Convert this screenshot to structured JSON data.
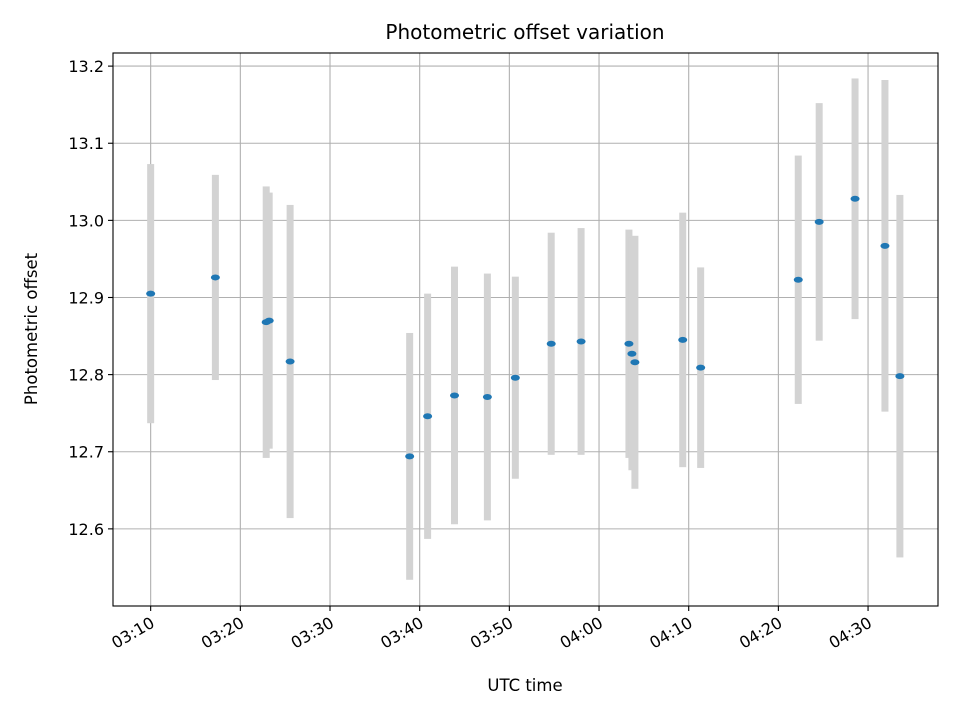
{
  "chart_data": {
    "type": "scatter",
    "title": "Photometric offset variation",
    "xlabel": "UTC time",
    "ylabel": "Photometric offset",
    "x_ticks": [
      "03:10",
      "03:20",
      "03:30",
      "03:40",
      "03:50",
      "04:00",
      "04:10",
      "04:20",
      "04:30"
    ],
    "y_ticks": [
      "12.6",
      "12.7",
      "12.8",
      "12.9",
      "13.0",
      "13.1",
      "13.2"
    ],
    "xlim": [
      "03:05:48",
      "04:37:48"
    ],
    "ylim": [
      12.5,
      13.217
    ],
    "grid": true,
    "colors": {
      "point": "#1f77b4",
      "errorbar": "#d3d3d3",
      "grid": "#b0b0b0"
    },
    "series": [
      {
        "points": [
          {
            "t": "03:10:00",
            "y": 12.905,
            "err": 0.168
          },
          {
            "t": "03:17:13",
            "y": 12.926,
            "err": 0.133
          },
          {
            "t": "03:22:53",
            "y": 12.868,
            "err": 0.176
          },
          {
            "t": "03:23:13",
            "y": 12.87,
            "err": 0.166
          },
          {
            "t": "03:25:33",
            "y": 12.817,
            "err": 0.203
          },
          {
            "t": "03:38:53",
            "y": 12.694,
            "err": 0.16
          },
          {
            "t": "03:40:53",
            "y": 12.746,
            "err": 0.159
          },
          {
            "t": "03:43:53",
            "y": 12.773,
            "err": 0.167
          },
          {
            "t": "03:47:33",
            "y": 12.771,
            "err": 0.16
          },
          {
            "t": "03:50:40",
            "y": 12.796,
            "err": 0.131
          },
          {
            "t": "03:54:40",
            "y": 12.84,
            "err": 0.144
          },
          {
            "t": "03:58:00",
            "y": 12.843,
            "err": 0.147
          },
          {
            "t": "04:03:20",
            "y": 12.84,
            "err": 0.148
          },
          {
            "t": "04:03:40",
            "y": 12.827,
            "err": 0.151
          },
          {
            "t": "04:04:00",
            "y": 12.816,
            "err": 0.164
          },
          {
            "t": "04:09:20",
            "y": 12.845,
            "err": 0.165
          },
          {
            "t": "04:11:20",
            "y": 12.809,
            "err": 0.13
          },
          {
            "t": "04:22:13",
            "y": 12.923,
            "err": 0.161
          },
          {
            "t": "04:24:33",
            "y": 12.998,
            "err": 0.154
          },
          {
            "t": "04:28:33",
            "y": 13.028,
            "err": 0.156
          },
          {
            "t": "04:31:53",
            "y": 12.967,
            "err": 0.215
          },
          {
            "t": "04:33:33",
            "y": 12.798,
            "err": 0.235
          }
        ]
      }
    ]
  }
}
